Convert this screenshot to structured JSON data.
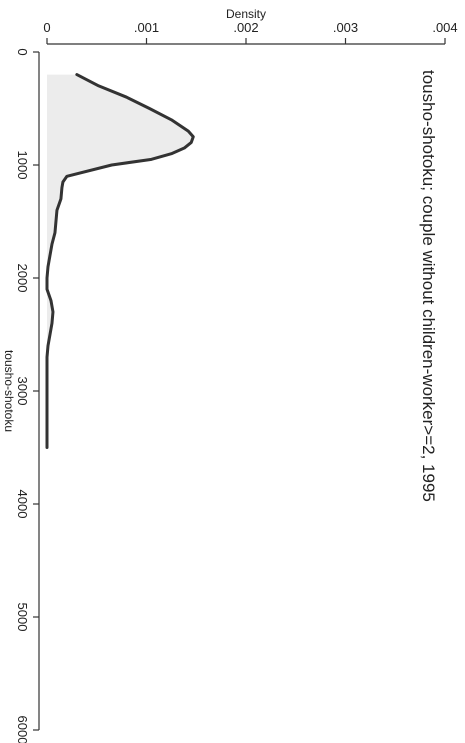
{
  "chart_data": {
    "type": "area",
    "title": "tousho-shotoku; couple without children-worker>=2, 1995",
    "xlabel": "tousho-shotoku",
    "ylabel": "Density",
    "xlim": [
      0,
      6000
    ],
    "ylim": [
      0,
      0.004
    ],
    "x_ticks": [
      {
        "value": 0,
        "label": "0"
      },
      {
        "value": 1000,
        "label": "1000"
      },
      {
        "value": 2000,
        "label": "2000"
      },
      {
        "value": 3000,
        "label": "3000"
      },
      {
        "value": 4000,
        "label": "4000"
      },
      {
        "value": 5000,
        "label": "5000"
      },
      {
        "value": 6000,
        "label": "6000"
      }
    ],
    "y_ticks": [
      {
        "value": 0,
        "label": "0"
      },
      {
        "value": 0.001,
        "label": ".001"
      },
      {
        "value": 0.002,
        "label": ".002"
      },
      {
        "value": 0.003,
        "label": ".003"
      },
      {
        "value": 0.004,
        "label": ".004"
      }
    ],
    "orientation": "rotated-90-clockwise",
    "grid": false,
    "series": [
      {
        "x": [
          200,
          300,
          400,
          500,
          600,
          700,
          750,
          800,
          850,
          900,
          950,
          1000,
          1100,
          1150,
          1200,
          1300,
          1400,
          1500,
          1600,
          1700,
          1800,
          1900,
          2000,
          2100,
          2200,
          2300,
          2400,
          2500,
          2600,
          2700,
          2800,
          3000,
          3500
        ],
        "y": [
          0.0003,
          0.00052,
          0.0008,
          0.00103,
          0.00125,
          0.00142,
          0.00147,
          0.00145,
          0.00138,
          0.00125,
          0.00105,
          0.00065,
          0.0002,
          0.00016,
          0.00015,
          0.00014,
          0.0001,
          9e-05,
          8e-05,
          5e-05,
          3e-05,
          1e-05,
          0.0,
          0.0,
          4e-05,
          6e-05,
          5e-05,
          3e-05,
          1e-05,
          0.0,
          0.0,
          0.0,
          0.0
        ]
      }
    ],
    "colors": {
      "line": "#333333",
      "fill": "#c8c8c8"
    }
  }
}
